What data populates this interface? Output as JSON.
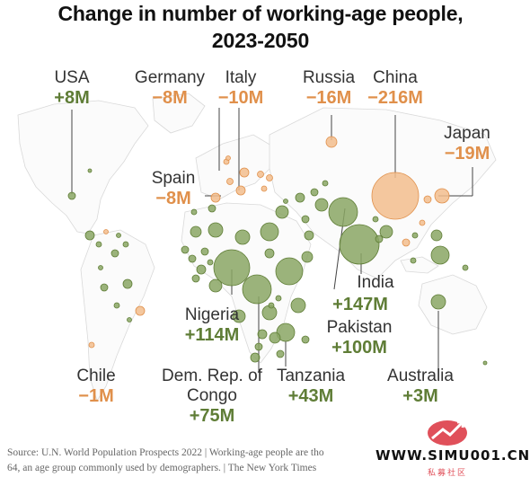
{
  "title_line1": "Change in number of working-age people,",
  "title_line2": "2023-2050",
  "colors": {
    "increase": "#5f7d36",
    "decrease": "#e0904b",
    "land_stroke": "#d9d9d9"
  },
  "labels": {
    "usa": {
      "name": "USA",
      "value": "+8M"
    },
    "germany": {
      "name": "Germany",
      "value": "−8M"
    },
    "italy": {
      "name": "Italy",
      "value": "−10M"
    },
    "russia": {
      "name": "Russia",
      "value": "−16M"
    },
    "china": {
      "name": "China",
      "value": "−216M"
    },
    "japan": {
      "name": "Japan",
      "value": "−19M"
    },
    "spain": {
      "name": "Spain",
      "value": "−8M"
    },
    "india": {
      "name": "India",
      "value": "+147M"
    },
    "nigeria": {
      "name": "Nigeria",
      "value": "+114M"
    },
    "pakistan": {
      "name": "Pakistan",
      "value": "+100M"
    },
    "chile": {
      "name": "Chile",
      "value": "−1M"
    },
    "drc": {
      "name_line1": "Dem. Rep. of",
      "name_line2": "Congo",
      "value": "+75M"
    },
    "tanzania": {
      "name": "Tanzania",
      "value": "+43M"
    },
    "australia": {
      "name": "Australia",
      "value": "+3M"
    }
  },
  "source_line1": "Source: U.N. World Population Prospects 2022 | Working-age people are tho",
  "source_line2": "64, an age group commonly used by demographers. | The New York Times",
  "watermark": {
    "text": "WWW.SIMU001.CN",
    "sub": "私募社区"
  }
}
